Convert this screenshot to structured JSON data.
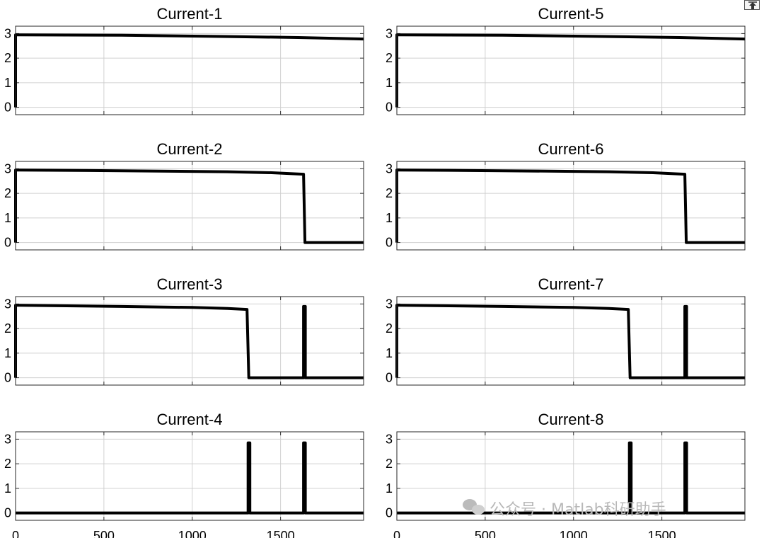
{
  "chart_data": {
    "type": "line",
    "layout": "4 rows x 2 columns of subplots",
    "xlim": [
      0,
      1970
    ],
    "ylim": [
      -0.3,
      3.3
    ],
    "x_ticks": [
      0,
      500,
      1000,
      1500
    ],
    "y_ticks": [
      0,
      1,
      2,
      3
    ],
    "x_tick_labels": [
      "0",
      "500",
      "1000",
      "1500"
    ],
    "y_tick_labels": [
      "0",
      "1",
      "2",
      "3"
    ],
    "grid": true,
    "line_color": "#000000",
    "subplots": [
      {
        "title": "Current-1",
        "x": [
          0,
          0,
          20,
          600,
          1200,
          1600,
          1970
        ],
        "y": [
          0,
          2.95,
          2.95,
          2.93,
          2.88,
          2.84,
          2.78
        ]
      },
      {
        "title": "Current-2",
        "x": [
          0,
          0,
          20,
          600,
          1200,
          1450,
          1630,
          1638,
          1970
        ],
        "y": [
          0,
          2.95,
          2.95,
          2.92,
          2.88,
          2.84,
          2.78,
          0,
          0
        ]
      },
      {
        "title": "Current-3",
        "x": [
          0,
          0,
          20,
          600,
          1000,
          1200,
          1310,
          1320,
          1630,
          1630,
          1640,
          1640,
          1970
        ],
        "y": [
          0,
          2.95,
          2.95,
          2.9,
          2.86,
          2.82,
          2.78,
          0,
          0,
          2.9,
          2.9,
          0,
          0
        ]
      },
      {
        "title": "Current-4",
        "x": [
          0,
          1316,
          1316,
          1326,
          1326,
          1630,
          1630,
          1640,
          1640,
          1970
        ],
        "y": [
          0,
          0,
          2.85,
          2.85,
          0,
          0,
          2.85,
          2.85,
          0,
          0
        ]
      },
      {
        "title": "Current-5",
        "x": [
          0,
          0,
          20,
          600,
          1200,
          1600,
          1970
        ],
        "y": [
          0,
          2.95,
          2.95,
          2.93,
          2.88,
          2.84,
          2.78
        ]
      },
      {
        "title": "Current-6",
        "x": [
          0,
          0,
          20,
          600,
          1200,
          1450,
          1630,
          1638,
          1970
        ],
        "y": [
          0,
          2.95,
          2.95,
          2.92,
          2.88,
          2.84,
          2.78,
          0,
          0
        ]
      },
      {
        "title": "Current-7",
        "x": [
          0,
          0,
          20,
          600,
          1000,
          1200,
          1310,
          1320,
          1630,
          1630,
          1640,
          1640,
          1970
        ],
        "y": [
          0,
          2.95,
          2.95,
          2.9,
          2.86,
          2.82,
          2.78,
          0,
          0,
          2.9,
          2.9,
          0,
          0
        ]
      },
      {
        "title": "Current-8",
        "x": [
          0,
          1316,
          1316,
          1326,
          1326,
          1630,
          1630,
          1640,
          1640,
          1970
        ],
        "y": [
          0,
          0,
          2.85,
          2.85,
          0,
          0,
          2.85,
          2.85,
          0,
          0
        ]
      }
    ]
  },
  "watermark": {
    "text": "公众号 · Matlab科研助手",
    "icon": "wechat-icon"
  },
  "toolbar": {
    "export_icon": "export-icon"
  }
}
